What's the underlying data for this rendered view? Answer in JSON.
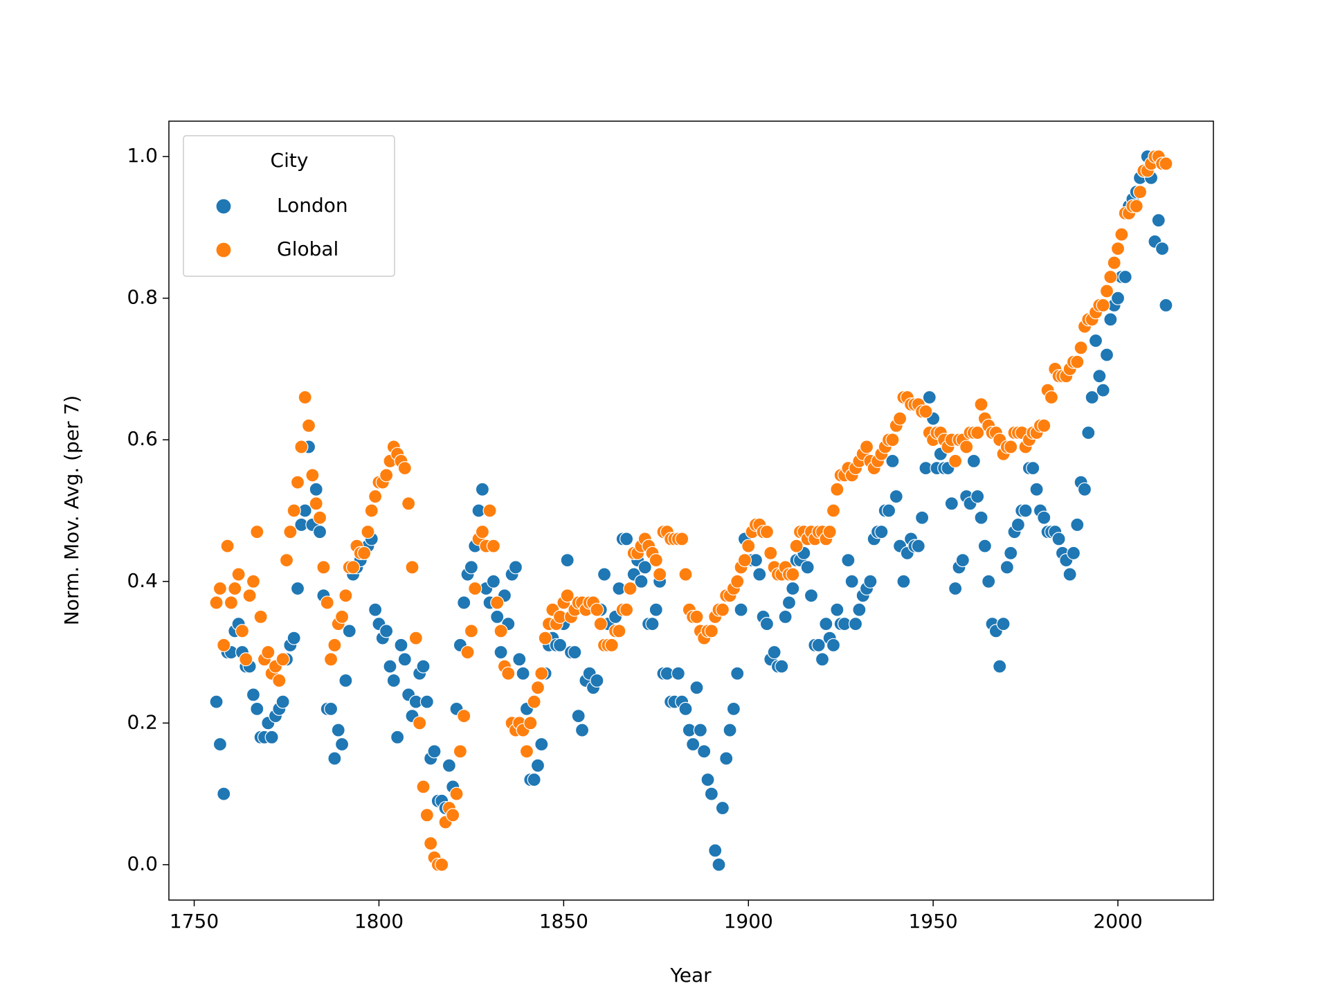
{
  "chart_data": {
    "type": "scatter",
    "xlabel": "Year",
    "ylabel": "Norm. Mov. Avg. (per 7)",
    "legend_title": "City",
    "legend_loc": "upper left",
    "xlim": [
      1743.15,
      2025.85
    ],
    "ylim": [
      -0.05,
      1.05
    ],
    "xticks": [
      1750,
      1800,
      1850,
      1900,
      1950,
      2000
    ],
    "yticks": [
      {
        "value": 0,
        "label": "0.0"
      },
      0.2,
      0.4,
      0.6,
      0.8,
      {
        "value": 1,
        "label": "1.0"
      }
    ],
    "x": [
      1756,
      1757,
      1758,
      1759,
      1760,
      1761,
      1762,
      1763,
      1764,
      1765,
      1766,
      1767,
      1768,
      1769,
      1770,
      1771,
      1772,
      1773,
      1774,
      1775,
      1776,
      1777,
      1778,
      1779,
      1780,
      1781,
      1782,
      1783,
      1784,
      1785,
      1786,
      1787,
      1788,
      1789,
      1790,
      1791,
      1792,
      1793,
      1794,
      1795,
      1796,
      1797,
      1798,
      1799,
      1800,
      1801,
      1802,
      1803,
      1804,
      1805,
      1806,
      1807,
      1808,
      1809,
      1810,
      1811,
      1812,
      1813,
      1814,
      1815,
      1816,
      1817,
      1818,
      1819,
      1820,
      1821,
      1822,
      1823,
      1824,
      1825,
      1826,
      1827,
      1828,
      1829,
      1830,
      1831,
      1832,
      1833,
      1834,
      1835,
      1836,
      1837,
      1838,
      1839,
      1840,
      1841,
      1842,
      1843,
      1844,
      1845,
      1846,
      1847,
      1848,
      1849,
      1850,
      1851,
      1852,
      1853,
      1854,
      1855,
      1856,
      1857,
      1858,
      1859,
      1860,
      1861,
      1862,
      1863,
      1864,
      1865,
      1866,
      1867,
      1868,
      1869,
      1870,
      1871,
      1872,
      1873,
      1874,
      1875,
      1876,
      1877,
      1878,
      1879,
      1880,
      1881,
      1882,
      1883,
      1884,
      1885,
      1886,
      1887,
      1888,
      1889,
      1890,
      1891,
      1892,
      1893,
      1894,
      1895,
      1896,
      1897,
      1898,
      1899,
      1900,
      1901,
      1902,
      1903,
      1904,
      1905,
      1906,
      1907,
      1908,
      1909,
      1910,
      1911,
      1912,
      1913,
      1914,
      1915,
      1916,
      1917,
      1918,
      1919,
      1920,
      1921,
      1922,
      1923,
      1924,
      1925,
      1926,
      1927,
      1928,
      1929,
      1930,
      1931,
      1932,
      1933,
      1934,
      1935,
      1936,
      1937,
      1938,
      1939,
      1940,
      1941,
      1942,
      1943,
      1944,
      1945,
      1946,
      1947,
      1948,
      1949,
      1950,
      1951,
      1952,
      1953,
      1954,
      1955,
      1956,
      1957,
      1958,
      1959,
      1960,
      1961,
      1962,
      1963,
      1964,
      1965,
      1966,
      1967,
      1968,
      1969,
      1970,
      1971,
      1972,
      1973,
      1974,
      1975,
      1976,
      1977,
      1978,
      1979,
      1980,
      1981,
      1982,
      1983,
      1984,
      1985,
      1986,
      1987,
      1988,
      1989,
      1990,
      1991,
      1992,
      1993,
      1994,
      1995,
      1996,
      1997,
      1998,
      1999,
      2000,
      2001,
      2002,
      2003,
      2004,
      2005,
      2006,
      2007,
      2008,
      2009,
      2010,
      2011,
      2012,
      2013
    ],
    "series": [
      {
        "name": "London",
        "color": "#1f77b4",
        "values": [
          0.23,
          0.17,
          0.1,
          0.3,
          0.3,
          0.33,
          0.34,
          0.3,
          0.28,
          0.28,
          0.24,
          0.22,
          0.18,
          0.18,
          0.2,
          0.18,
          0.21,
          0.22,
          0.23,
          0.29,
          0.31,
          0.32,
          0.39,
          0.48,
          0.5,
          0.59,
          0.48,
          0.53,
          0.47,
          0.38,
          0.22,
          0.22,
          0.15,
          0.19,
          0.17,
          0.26,
          0.33,
          0.41,
          0.42,
          0.43,
          0.44,
          0.45,
          0.46,
          0.36,
          0.34,
          0.32,
          0.33,
          0.28,
          0.26,
          0.18,
          0.31,
          0.29,
          0.24,
          0.21,
          0.23,
          0.27,
          0.28,
          0.23,
          0.15,
          0.16,
          0.09,
          0.09,
          0.08,
          0.14,
          0.11,
          0.22,
          0.31,
          0.37,
          0.41,
          0.42,
          0.45,
          0.5,
          0.53,
          0.39,
          0.37,
          0.4,
          0.35,
          0.3,
          0.38,
          0.34,
          0.41,
          0.42,
          0.29,
          0.27,
          0.22,
          0.12,
          0.12,
          0.14,
          0.17,
          0.27,
          0.31,
          0.32,
          0.31,
          0.31,
          0.34,
          0.43,
          0.3,
          0.3,
          0.21,
          0.19,
          0.26,
          0.27,
          0.25,
          0.26,
          0.36,
          0.41,
          0.34,
          0.31,
          0.35,
          0.39,
          0.46,
          0.46,
          0.39,
          0.41,
          0.43,
          0.4,
          0.42,
          0.34,
          0.34,
          0.36,
          0.4,
          0.27,
          0.27,
          0.23,
          0.23,
          0.27,
          0.23,
          0.22,
          0.19,
          0.17,
          0.25,
          0.19,
          0.16,
          0.12,
          0.1,
          0.02,
          0.0,
          0.08,
          0.15,
          0.19,
          0.22,
          0.27,
          0.36,
          0.46,
          0.43,
          0.43,
          0.43,
          0.41,
          0.35,
          0.34,
          0.29,
          0.3,
          0.28,
          0.28,
          0.35,
          0.37,
          0.39,
          0.43,
          0.43,
          0.44,
          0.42,
          0.38,
          0.31,
          0.31,
          0.29,
          0.34,
          0.32,
          0.31,
          0.36,
          0.34,
          0.34,
          0.43,
          0.4,
          0.34,
          0.36,
          0.38,
          0.39,
          0.4,
          0.46,
          0.47,
          0.47,
          0.5,
          0.5,
          0.57,
          0.52,
          0.45,
          0.4,
          0.44,
          0.46,
          0.45,
          0.45,
          0.49,
          0.56,
          0.66,
          0.63,
          0.56,
          0.58,
          0.56,
          0.56,
          0.51,
          0.39,
          0.42,
          0.43,
          0.52,
          0.51,
          0.57,
          0.52,
          0.49,
          0.45,
          0.4,
          0.34,
          0.33,
          0.28,
          0.34,
          0.42,
          0.44,
          0.47,
          0.48,
          0.5,
          0.5,
          0.56,
          0.56,
          0.53,
          0.5,
          0.49,
          0.47,
          0.47,
          0.47,
          0.46,
          0.44,
          0.43,
          0.41,
          0.44,
          0.48,
          0.54,
          0.53,
          0.61,
          0.66,
          0.74,
          0.69,
          0.67,
          0.72,
          0.77,
          0.79,
          0.8,
          0.83,
          0.83,
          0.93,
          0.94,
          0.95,
          0.97,
          0.98,
          1.0,
          0.97,
          0.88,
          0.91,
          0.87,
          0.79
        ]
      },
      {
        "name": "Global",
        "color": "#ff7f0e",
        "values": [
          0.37,
          0.39,
          0.31,
          0.45,
          0.37,
          0.39,
          0.41,
          0.33,
          0.29,
          0.38,
          0.4,
          0.47,
          0.35,
          0.29,
          0.3,
          0.27,
          0.28,
          0.26,
          0.29,
          0.43,
          0.47,
          0.5,
          0.54,
          0.59,
          0.66,
          0.62,
          0.55,
          0.51,
          0.49,
          0.42,
          0.37,
          0.29,
          0.31,
          0.34,
          0.35,
          0.38,
          0.42,
          0.42,
          0.45,
          0.44,
          0.44,
          0.47,
          0.5,
          0.52,
          0.54,
          0.54,
          0.55,
          0.57,
          0.59,
          0.58,
          0.57,
          0.56,
          0.51,
          0.42,
          0.32,
          0.2,
          0.11,
          0.07,
          0.03,
          0.01,
          0.0,
          0.0,
          0.06,
          0.08,
          0.07,
          0.1,
          0.16,
          0.21,
          0.3,
          0.33,
          0.39,
          0.46,
          0.47,
          0.45,
          0.5,
          0.45,
          0.37,
          0.33,
          0.28,
          0.27,
          0.2,
          0.19,
          0.2,
          0.19,
          0.16,
          0.2,
          0.23,
          0.25,
          0.27,
          0.32,
          0.34,
          0.36,
          0.34,
          0.35,
          0.37,
          0.38,
          0.35,
          0.36,
          0.37,
          0.37,
          0.36,
          0.37,
          0.37,
          0.36,
          0.34,
          0.31,
          0.31,
          0.31,
          0.33,
          0.33,
          0.36,
          0.36,
          0.39,
          0.44,
          0.44,
          0.45,
          0.46,
          0.45,
          0.44,
          0.43,
          0.41,
          0.47,
          0.47,
          0.46,
          0.46,
          0.46,
          0.46,
          0.41,
          0.36,
          0.35,
          0.35,
          0.33,
          0.32,
          0.33,
          0.33,
          0.35,
          0.36,
          0.36,
          0.38,
          0.38,
          0.39,
          0.4,
          0.42,
          0.43,
          0.45,
          0.47,
          0.48,
          0.48,
          0.47,
          0.47,
          0.44,
          0.42,
          0.41,
          0.41,
          0.42,
          0.41,
          0.41,
          0.45,
          0.47,
          0.47,
          0.46,
          0.47,
          0.46,
          0.47,
          0.47,
          0.46,
          0.47,
          0.5,
          0.53,
          0.55,
          0.55,
          0.56,
          0.55,
          0.56,
          0.57,
          0.58,
          0.59,
          0.57,
          0.56,
          0.57,
          0.58,
          0.59,
          0.6,
          0.6,
          0.62,
          0.63,
          0.66,
          0.66,
          0.65,
          0.65,
          0.65,
          0.64,
          0.64,
          0.61,
          0.6,
          0.61,
          0.61,
          0.6,
          0.59,
          0.6,
          0.57,
          0.6,
          0.6,
          0.59,
          0.61,
          0.61,
          0.61,
          0.65,
          0.63,
          0.62,
          0.61,
          0.61,
          0.6,
          0.58,
          0.59,
          0.59,
          0.61,
          0.61,
          0.61,
          0.59,
          0.6,
          0.61,
          0.61,
          0.62,
          0.62,
          0.67,
          0.66,
          0.7,
          0.69,
          0.69,
          0.69,
          0.7,
          0.71,
          0.71,
          0.73,
          0.76,
          0.77,
          0.77,
          0.78,
          0.79,
          0.79,
          0.81,
          0.83,
          0.85,
          0.87,
          0.89,
          0.92,
          0.92,
          0.93,
          0.93,
          0.95,
          0.98,
          0.98,
          0.99,
          1.0,
          1.0,
          0.99,
          0.99
        ]
      }
    ]
  }
}
